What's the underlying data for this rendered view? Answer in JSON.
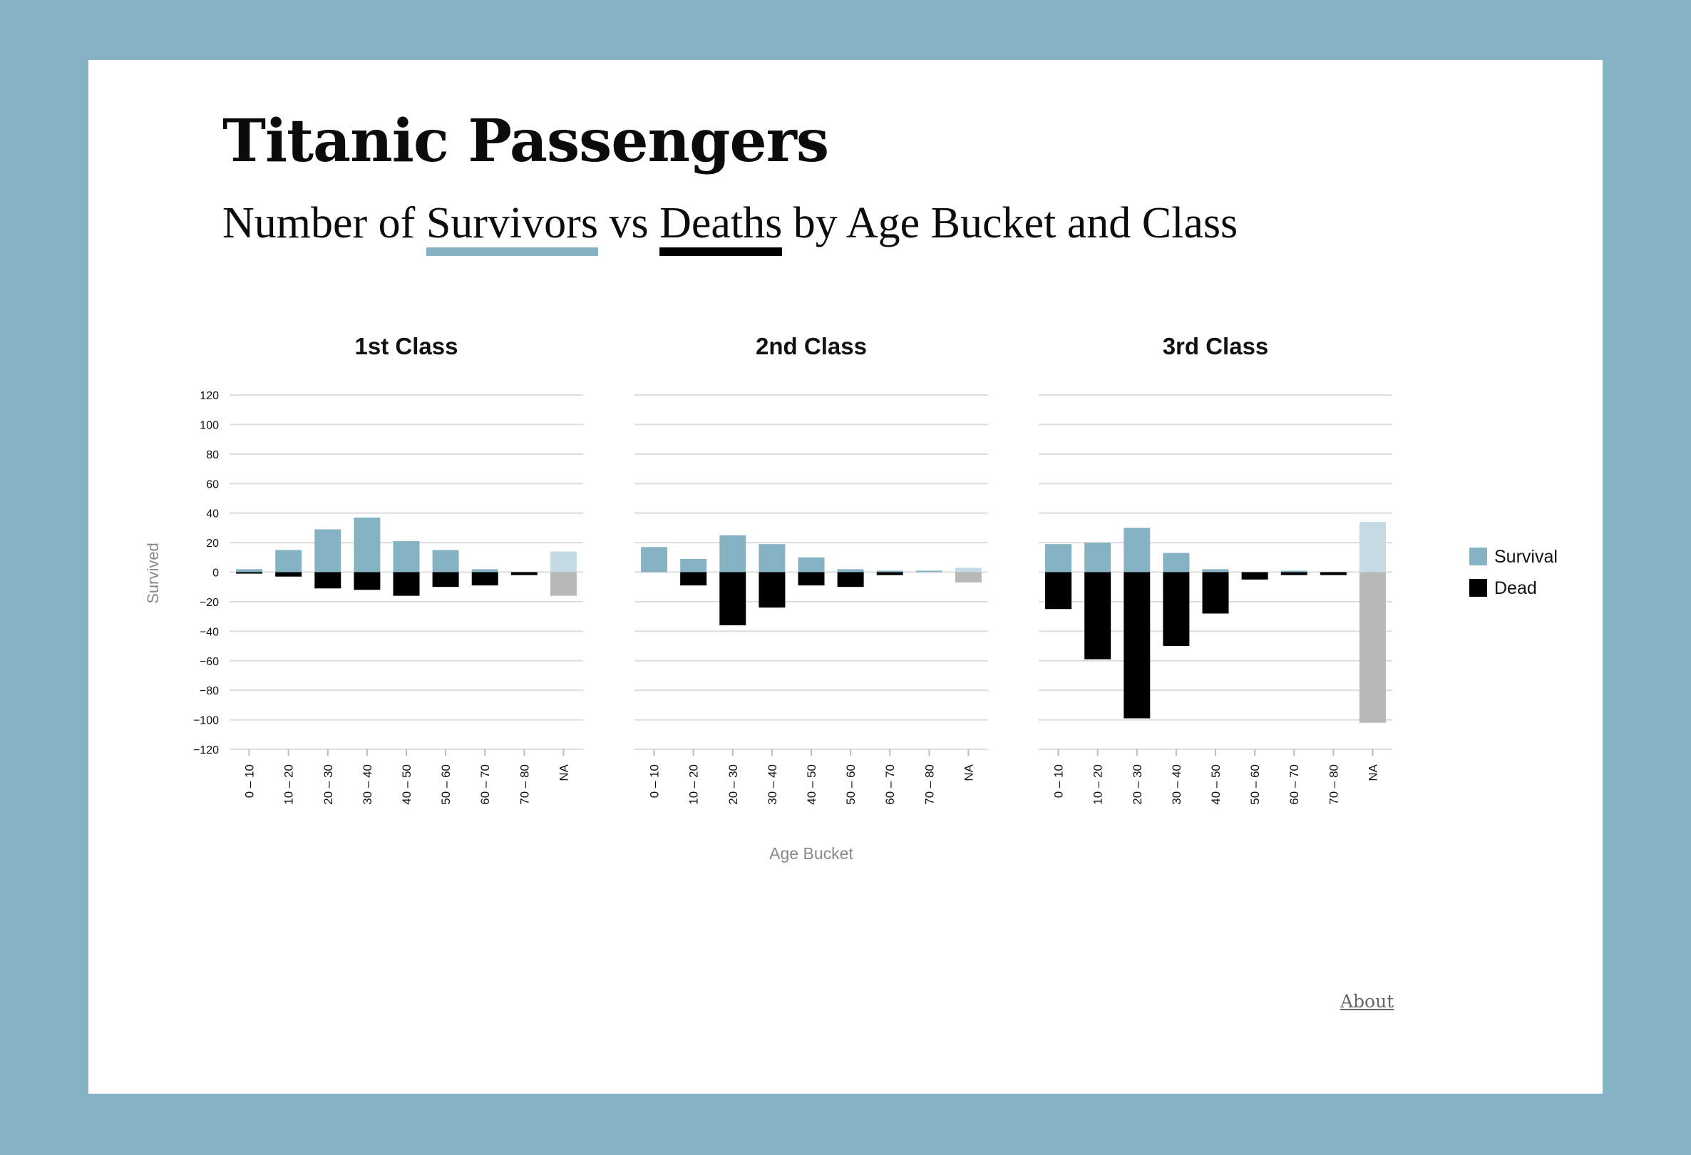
{
  "header": {
    "title": "Titanic Passengers",
    "subtitle_parts": [
      "Number of ",
      "Survivors",
      " vs ",
      "Deaths",
      " by Age Bucket and Class"
    ]
  },
  "footer": {
    "about_label": "About"
  },
  "colors": {
    "page_background": "#86b3c3",
    "survival": "#86b3c3",
    "dead": "#000000",
    "survival_na": "#c5dbe4",
    "dead_na": "#b8b8b8"
  },
  "chart_data": {
    "type": "bar",
    "layout": "small-multiples, diverging (survivors above zero, deaths below)",
    "ylabel": "Survived",
    "xlabel": "Age Bucket",
    "ylim": [
      -120,
      120
    ],
    "yticks": [
      120,
      100,
      80,
      60,
      40,
      20,
      0,
      -20,
      -40,
      -60,
      -80,
      -100,
      -120
    ],
    "ytick_labels": [
      "120",
      "100",
      "80",
      "60",
      "40",
      "20",
      "0",
      "−20",
      "−40",
      "−60",
      "−80",
      "−100",
      "−120"
    ],
    "grid": true,
    "legend_position": "right",
    "legend": [
      "Survival",
      "Dead"
    ],
    "categories": [
      "0 – 10",
      "10 – 20",
      "20 – 30",
      "30 – 40",
      "40 – 50",
      "50 – 60",
      "60 – 70",
      "70 – 80",
      "NA"
    ],
    "panels": [
      {
        "title": "1st Class",
        "series": [
          {
            "name": "Survival",
            "values": [
              2,
              15,
              29,
              37,
              21,
              15,
              2,
              0,
              14
            ]
          },
          {
            "name": "Dead",
            "values": [
              -1,
              -3,
              -11,
              -12,
              -16,
              -10,
              -9,
              -2,
              -16
            ]
          }
        ]
      },
      {
        "title": "2nd Class",
        "series": [
          {
            "name": "Survival",
            "values": [
              17,
              9,
              25,
              19,
              10,
              2,
              1,
              1,
              3
            ]
          },
          {
            "name": "Dead",
            "values": [
              0,
              -9,
              -36,
              -24,
              -9,
              -10,
              -2,
              0,
              -7
            ]
          }
        ]
      },
      {
        "title": "3rd Class",
        "series": [
          {
            "name": "Survival",
            "values": [
              19,
              20,
              30,
              13,
              2,
              0,
              1,
              0,
              34
            ]
          },
          {
            "name": "Dead",
            "values": [
              -25,
              -59,
              -99,
              -50,
              -28,
              -5,
              -2,
              -2,
              -102
            ]
          }
        ]
      }
    ]
  }
}
